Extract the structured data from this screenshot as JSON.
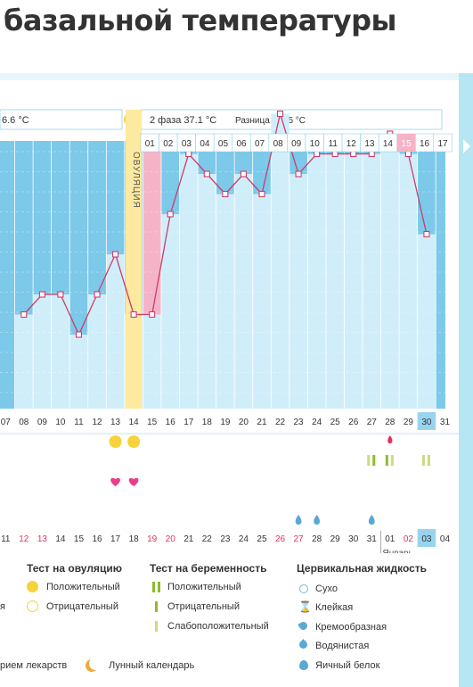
{
  "page_title": "базальной температуры",
  "header": {
    "phase1_text": "6.6 °C",
    "phase2_text": "2 фаза 37.1 °C",
    "diff_text": "Разница t° 0.5 °C",
    "ovulation_label": "ОВУЛЯЦИЯ"
  },
  "top_days": [
    "01",
    "02",
    "03",
    "04",
    "05",
    "06",
    "07",
    "08",
    "09",
    "10",
    "11",
    "12",
    "13",
    "14",
    "15",
    "16",
    "17"
  ],
  "chart_data": {
    "type": "line",
    "title": "",
    "xlabel": "",
    "ylabel": "",
    "x": [
      "07",
      "08",
      "09",
      "10",
      "11",
      "12",
      "13",
      "14",
      "15",
      "16",
      "17",
      "18",
      "19",
      "20",
      "21",
      "22",
      "23",
      "24",
      "25",
      "26",
      "27",
      "28",
      "29",
      "30"
    ],
    "series": [
      {
        "values": [
          null,
          3,
          4,
          4,
          2,
          4,
          6,
          3,
          3,
          8,
          11,
          10,
          9,
          10,
          9,
          13,
          10,
          11,
          11,
          11,
          11,
          12,
          11,
          7
        ]
      }
    ],
    "ylim": [
      0,
      15
    ],
    "ovulation_day": "14",
    "highlight_day": "15",
    "today_day": "30"
  },
  "cycle_days": [
    "07",
    "08",
    "09",
    "10",
    "11",
    "12",
    "13",
    "14",
    "15",
    "16",
    "17",
    "18",
    "19",
    "20",
    "21",
    "22",
    "23",
    "24",
    "25",
    "26",
    "27",
    "28",
    "29",
    "30",
    "31"
  ],
  "dates": [
    "11",
    "12",
    "13",
    "14",
    "15",
    "16",
    "17",
    "18",
    "19",
    "20",
    "21",
    "22",
    "23",
    "24",
    "25",
    "26",
    "27",
    "28",
    "29",
    "30",
    "31",
    "01",
    "02",
    "03",
    "04"
  ],
  "month_label": "Январь",
  "marks": {
    "ovulation_tests": [
      "13",
      "14"
    ],
    "hearts": [
      "13",
      "14"
    ],
    "red_drop": "28",
    "pregnancy_tests": [
      "27",
      "28",
      "30"
    ],
    "fluid": [
      "23",
      "24",
      "27"
    ]
  },
  "legend": {
    "ovulation": {
      "title": "Тест на овуляцию",
      "positive": "Положительный",
      "negative": "Отрицательный"
    },
    "pregnancy": {
      "title": "Тест на беременность",
      "positive": "Положительный",
      "negative": "Отрицательный",
      "weak": "Слабоположительный"
    },
    "fluid": {
      "title": "Цервикальная жидкость",
      "dry": "Сухо",
      "sticky": "Клейкая",
      "creamy": "Кремообразная",
      "watery": "Водянистая",
      "eggwhite": "Яичный белок"
    },
    "left_cut": "я",
    "bottom_meds": "рием лекарств",
    "bottom_moon": "Лунный календарь"
  },
  "colors": {
    "grid": "#7cc9ea",
    "bar": "#d0eefa",
    "ovulation": "#fde9a0",
    "line": "#cc3d6a",
    "pink": "#f5b3c7",
    "today": "#99d4ef",
    "accent_red": "#e8315b"
  }
}
